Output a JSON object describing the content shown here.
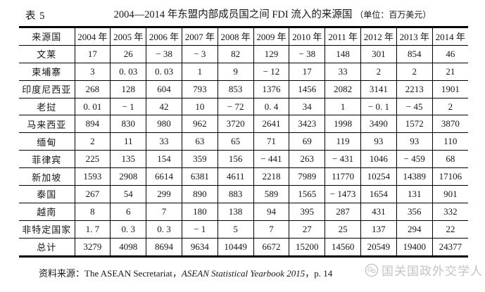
{
  "title": {
    "table_label": "表 5",
    "main": "2004—2014 年东盟内部成员国之间 FDI 流入的来源国",
    "unit": "（单位：百万美元）"
  },
  "table": {
    "header": [
      "来源国",
      "2004 年",
      "2005 年",
      "2006 年",
      "2007 年",
      "2008 年",
      "2009 年",
      "2010 年",
      "2011 年",
      "2012 年",
      "2013 年",
      "2014 年"
    ],
    "rows": [
      {
        "label": "文莱",
        "values": [
          "17",
          "26",
          "− 38",
          "− 3",
          "82",
          "129",
          "− 38",
          "148",
          "301",
          "854",
          "46"
        ]
      },
      {
        "label": "柬埔寨",
        "values": [
          "3",
          "0. 03",
          "0. 03",
          "1",
          "9",
          "− 12",
          "17",
          "33",
          "2",
          "2",
          "21"
        ]
      },
      {
        "label": "印度尼西亚",
        "values": [
          "268",
          "128",
          "604",
          "793",
          "853",
          "1376",
          "1456",
          "2082",
          "3141",
          "2213",
          "1901"
        ]
      },
      {
        "label": "老挝",
        "values": [
          "0. 01",
          "− 1",
          "42",
          "10",
          "− 72",
          "0. 4",
          "34",
          "1",
          "− 0. 1",
          "− 45",
          "2"
        ]
      },
      {
        "label": "马来西亚",
        "values": [
          "894",
          "830",
          "980",
          "962",
          "3720",
          "2641",
          "3423",
          "1998",
          "3490",
          "1572",
          "3870"
        ]
      },
      {
        "label": "缅甸",
        "values": [
          "2",
          "11",
          "33",
          "63",
          "65",
          "71",
          "69",
          "119",
          "93",
          "93",
          "110"
        ]
      },
      {
        "label": "菲律宾",
        "values": [
          "225",
          "135",
          "154",
          "359",
          "156",
          "− 441",
          "263",
          "− 431",
          "1046",
          "− 459",
          "68"
        ]
      },
      {
        "label": "新加坡",
        "values": [
          "1593",
          "2908",
          "6614",
          "6381",
          "4611",
          "2218",
          "7989",
          "11770",
          "10254",
          "14389",
          "17106"
        ]
      },
      {
        "label": "泰国",
        "values": [
          "267",
          "54",
          "299",
          "890",
          "883",
          "589",
          "1565",
          "− 1473",
          "1654",
          "131",
          "901"
        ]
      },
      {
        "label": "越南",
        "values": [
          "8",
          "6",
          "7",
          "180",
          "138",
          "94",
          "395",
          "287",
          "431",
          "356",
          "332"
        ]
      },
      {
        "label": "非特定国家",
        "values": [
          "1. 7",
          "0. 3",
          "0. 3",
          "− 1",
          "5",
          "7",
          "27",
          "25",
          "137",
          "294",
          "22"
        ]
      },
      {
        "label": "总计",
        "values": [
          "3279",
          "4098",
          "8694",
          "9634",
          "10449",
          "6672",
          "15200",
          "14560",
          "20549",
          "19400",
          "24377"
        ]
      }
    ]
  },
  "source": {
    "prefix": "资料来源：The ASEAN Secretariat，",
    "book_title": "ASEAN Statistical Yearbook 2015",
    "suffix": "，p. 14",
    "watermark": "国关国政外交学人"
  },
  "colors": {
    "text": "#161616",
    "border": "#000000",
    "watermark": "#c4c4c4",
    "background": "#ffffff"
  }
}
